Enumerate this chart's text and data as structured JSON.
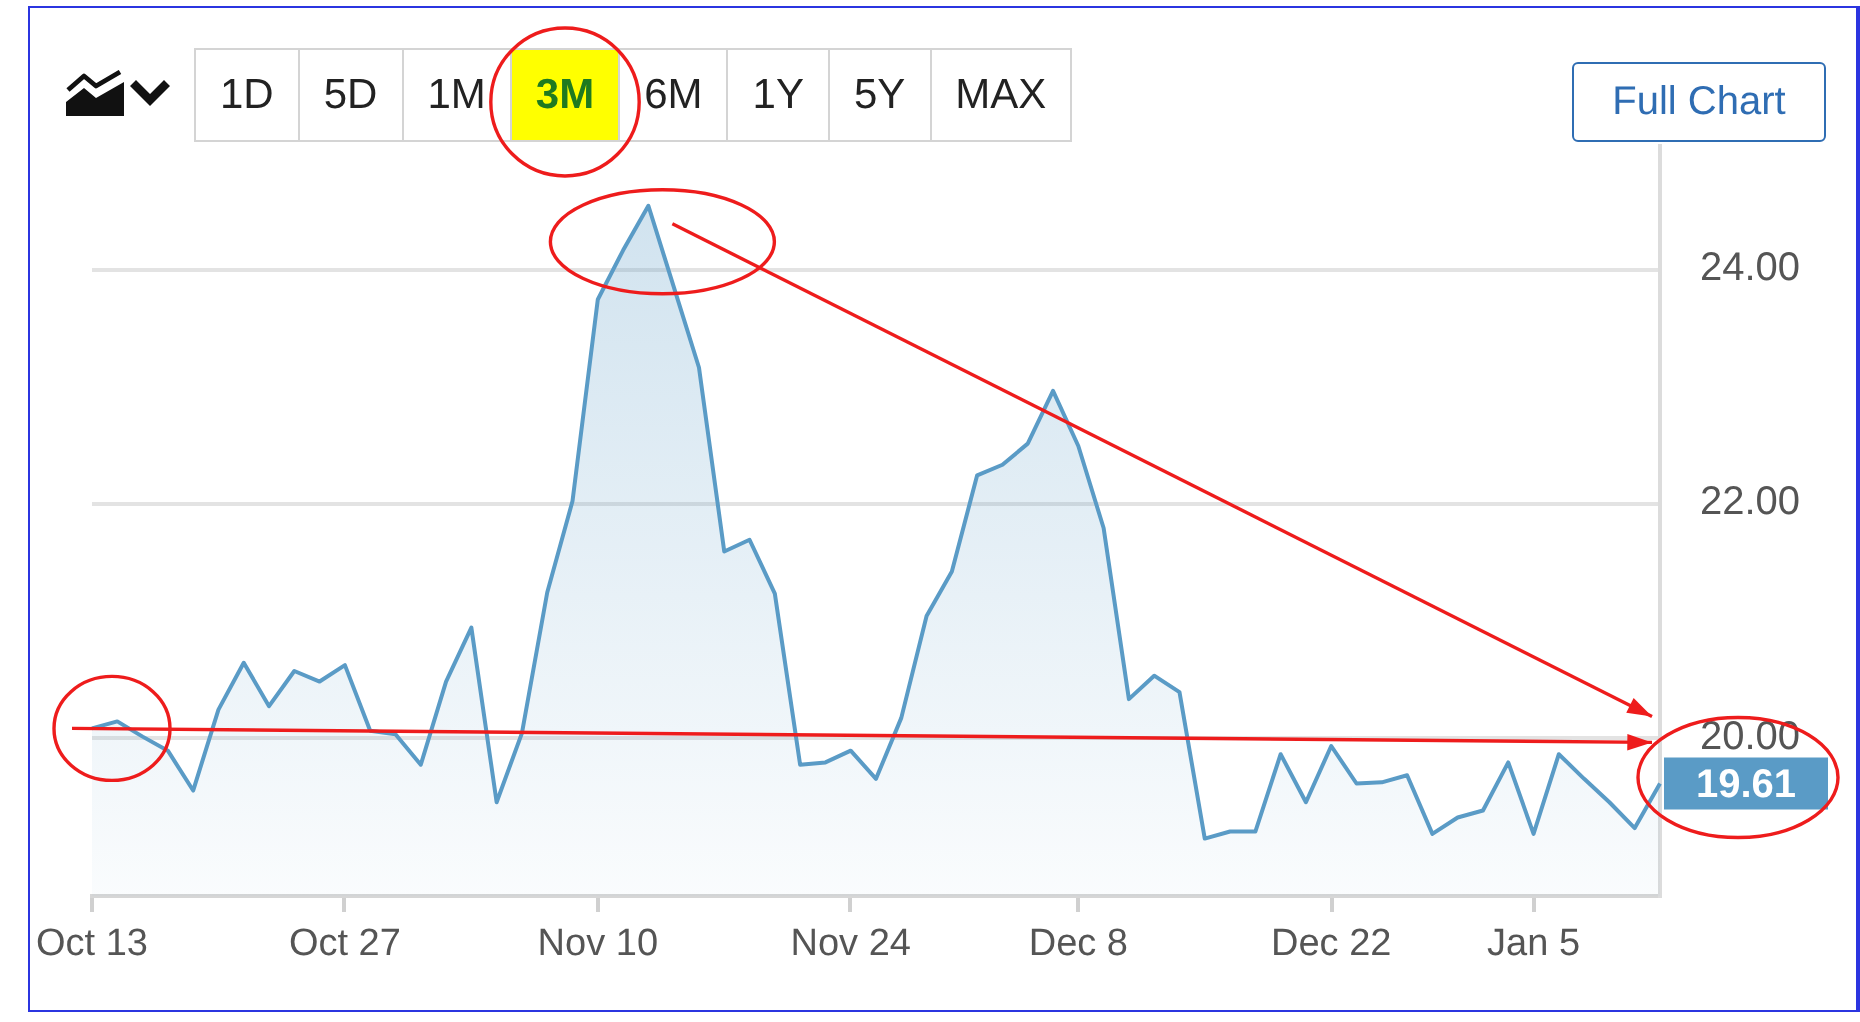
{
  "chart_data": {
    "type": "area",
    "categories": [
      "Oct 13",
      null,
      null,
      null,
      null,
      null,
      null,
      null,
      null,
      null,
      "Oct 27",
      null,
      null,
      null,
      null,
      null,
      null,
      null,
      null,
      null,
      "Nov 10",
      null,
      null,
      null,
      null,
      null,
      null,
      null,
      null,
      null,
      "Nov 24",
      null,
      null,
      null,
      null,
      null,
      null,
      null,
      null,
      "Dec 8",
      null,
      null,
      null,
      null,
      null,
      null,
      null,
      null,
      null,
      "Dec 22",
      null,
      null,
      null,
      null,
      null,
      null,
      null,
      "Jan 5",
      null,
      null,
      null,
      null,
      null
    ],
    "values": [
      20.08,
      20.14,
      20.01,
      19.89,
      19.55,
      20.24,
      20.64,
      20.27,
      20.57,
      20.48,
      20.62,
      20.06,
      20.03,
      19.77,
      20.48,
      20.94,
      19.45,
      20.04,
      21.24,
      22.02,
      23.74,
      24.16,
      24.54,
      23.85,
      23.16,
      21.59,
      21.69,
      21.23,
      19.77,
      19.79,
      19.89,
      19.65,
      20.17,
      21.04,
      21.42,
      22.24,
      22.33,
      22.51,
      22.96,
      22.49,
      21.79,
      20.33,
      20.53,
      20.39,
      19.14,
      19.2,
      19.2,
      19.86,
      19.45,
      19.93,
      19.61,
      19.62,
      19.68,
      19.18,
      19.32,
      19.38,
      19.79,
      19.18,
      19.86,
      19.65,
      19.45,
      19.23,
      19.61
    ],
    "value_labels": [
      null,
      null,
      null,
      null,
      null,
      null,
      null,
      null,
      null,
      null,
      null,
      null,
      null,
      null,
      null,
      null,
      null,
      null,
      null,
      null,
      null,
      null,
      null,
      null,
      null,
      null,
      null,
      null,
      null,
      null,
      null,
      null,
      null,
      null,
      null,
      null,
      null,
      null,
      null,
      null,
      null,
      null,
      null,
      null,
      null,
      null,
      null,
      null,
      null,
      null,
      null,
      null,
      null,
      null,
      null,
      null,
      null,
      null,
      null,
      null,
      null,
      null,
      "19.61"
    ],
    "color": "#5a9bc6",
    "ylim": [
      18.65,
      25.05
    ],
    "yticks": [
      {
        "value": 20,
        "label": "20.00"
      },
      {
        "value": 22,
        "label": "22.00"
      },
      {
        "value": 24,
        "label": "24.00"
      }
    ],
    "grid": "y",
    "annotations": [
      "1D",
      "5D",
      "1M",
      "3M",
      "6M",
      "1Y",
      "5Y",
      "MAX",
      "Full Chart"
    ]
  }
}
